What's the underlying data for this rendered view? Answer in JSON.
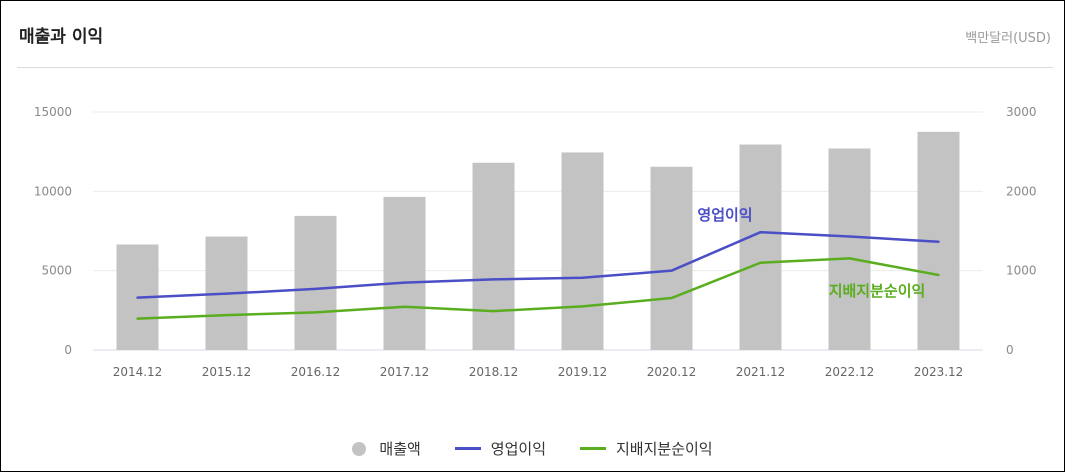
{
  "header": {
    "title": "매출과 이익",
    "unit": "백만달러(USD)"
  },
  "colors": {
    "revenue": "#c3c3c3",
    "operating_profit": "#4b4fc7",
    "net_profit": "#5aad1e"
  },
  "legend": {
    "revenue": "매출액",
    "operating_profit": "영업이익",
    "net_profit": "지배지분순이익"
  },
  "chart_data": {
    "type": "bar",
    "title": "매출과 이익",
    "unit": "백만달러(USD)",
    "categories": [
      "2014.12",
      "2015.12",
      "2016.12",
      "2017.12",
      "2018.12",
      "2019.12",
      "2020.12",
      "2021.12",
      "2022.12",
      "2023.12"
    ],
    "left_axis": {
      "ylim": [
        0,
        15000
      ],
      "ticks": [
        "0",
        "5000",
        "10000",
        "15000"
      ]
    },
    "right_axis": {
      "ylim": [
        0,
        3000
      ],
      "ticks": [
        "0",
        "1000",
        "2000",
        "3000"
      ]
    },
    "series": [
      {
        "name": "매출액",
        "type": "bar",
        "axis": "left",
        "values": [
          6650,
          7150,
          8450,
          9650,
          11800,
          12450,
          11550,
          12950,
          12700,
          13750
        ]
      },
      {
        "name": "영업이익",
        "type": "line",
        "axis": "right",
        "label": "영업이익",
        "values": [
          660,
          710,
          770,
          850,
          890,
          910,
          1000,
          1485,
          1430,
          1365
        ]
      },
      {
        "name": "지배지분순이익",
        "type": "line",
        "axis": "right",
        "label": "지배지분순이익",
        "values": [
          395,
          440,
          475,
          545,
          490,
          550,
          655,
          1100,
          1155,
          945
        ]
      }
    ],
    "grid": true,
    "legend_position": "bottom-center"
  }
}
